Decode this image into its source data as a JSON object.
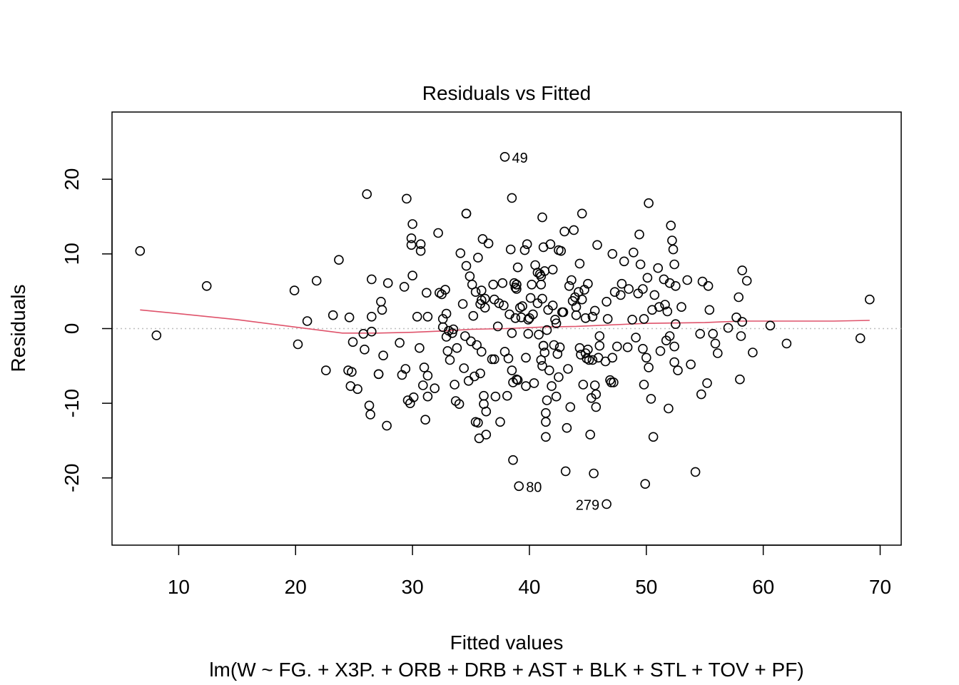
{
  "chart_data": {
    "type": "scatter",
    "title": "Residuals vs Fitted",
    "xlabel": "Fitted values",
    "subtitle": "lm(W ~ FG. + X3P. + ORB + DRB + AST + BLK + STL + TOV + PF)",
    "ylabel": "Residuals",
    "xlim": [
      4.3,
      71.8
    ],
    "ylim": [
      -29,
      29
    ],
    "x_ticks": [
      10,
      20,
      30,
      40,
      50,
      60,
      70
    ],
    "y_ticks": [
      -20,
      -10,
      0,
      10,
      20
    ],
    "reference_line_y": 0,
    "colors": {
      "points": "#000000",
      "smoother": "#DF536B",
      "reference": "#BEBEBE"
    },
    "labeled_points": [
      {
        "label": "49",
        "x": 37.9,
        "y": 23.0
      },
      {
        "label": "80",
        "x": 39.1,
        "y": -21.1
      },
      {
        "label": "279",
        "x": 46.6,
        "y": -23.5
      }
    ],
    "points": [
      [
        6.7,
        10.4
      ],
      [
        8.1,
        -0.9
      ],
      [
        12.4,
        5.7
      ],
      [
        19.9,
        5.1
      ],
      [
        20.2,
        -2.1
      ],
      [
        21.0,
        1.0
      ],
      [
        21.8,
        6.4
      ],
      [
        22.6,
        -5.6
      ],
      [
        23.2,
        1.8
      ],
      [
        23.7,
        9.2
      ],
      [
        24.5,
        -5.6
      ],
      [
        24.6,
        1.5
      ],
      [
        24.7,
        -7.7
      ],
      [
        24.8,
        -5.8
      ],
      [
        24.9,
        -1.8
      ],
      [
        25.3,
        -8.1
      ],
      [
        25.8,
        -0.7
      ],
      [
        25.9,
        -2.8
      ],
      [
        26.1,
        18.0
      ],
      [
        26.3,
        -10.3
      ],
      [
        26.4,
        -11.5
      ],
      [
        26.5,
        1.6
      ],
      [
        26.5,
        6.6
      ],
      [
        26.5,
        -0.4
      ],
      [
        27.1,
        -6.1
      ],
      [
        27.1,
        -6.1
      ],
      [
        27.3,
        3.6
      ],
      [
        27.4,
        2.5
      ],
      [
        27.5,
        -3.6
      ],
      [
        27.8,
        -13.0
      ],
      [
        27.9,
        6.1
      ],
      [
        28.9,
        -1.9
      ],
      [
        29.1,
        -6.2
      ],
      [
        29.3,
        5.6
      ],
      [
        29.4,
        -5.4
      ],
      [
        29.5,
        17.4
      ],
      [
        29.6,
        -9.6
      ],
      [
        29.8,
        -10.0
      ],
      [
        29.9,
        12.1
      ],
      [
        29.9,
        11.2
      ],
      [
        30.0,
        14.0
      ],
      [
        30.0,
        7.1
      ],
      [
        30.1,
        -9.2
      ],
      [
        30.4,
        1.6
      ],
      [
        30.6,
        -2.6
      ],
      [
        30.7,
        11.3
      ],
      [
        30.7,
        10.4
      ],
      [
        30.9,
        -7.6
      ],
      [
        31.0,
        -5.2
      ],
      [
        31.1,
        -12.2
      ],
      [
        31.2,
        4.8
      ],
      [
        31.3,
        -6.3
      ],
      [
        31.3,
        1.6
      ],
      [
        31.3,
        -9.1
      ],
      [
        31.9,
        -8.0
      ],
      [
        32.2,
        12.8
      ],
      [
        32.3,
        4.8
      ],
      [
        32.5,
        4.6
      ],
      [
        32.6,
        0.2
      ],
      [
        32.6,
        1.3
      ],
      [
        32.8,
        5.2
      ],
      [
        32.9,
        -1.1
      ],
      [
        32.9,
        2.0
      ],
      [
        33.0,
        -3.0
      ],
      [
        33.1,
        -0.3
      ],
      [
        33.2,
        -4.2
      ],
      [
        33.4,
        -0.6
      ],
      [
        33.5,
        -0.1
      ],
      [
        33.6,
        -7.5
      ],
      [
        33.7,
        -9.7
      ],
      [
        33.8,
        -2.6
      ],
      [
        34.0,
        -10.1
      ],
      [
        34.1,
        10.1
      ],
      [
        34.3,
        3.3
      ],
      [
        34.4,
        -5.3
      ],
      [
        34.5,
        -1.0
      ],
      [
        34.6,
        15.4
      ],
      [
        34.6,
        15.4
      ],
      [
        34.6,
        8.4
      ],
      [
        34.8,
        -7.0
      ],
      [
        34.9,
        7.0
      ],
      [
        35.0,
        -1.7
      ],
      [
        35.1,
        5.9
      ],
      [
        35.2,
        1.7
      ],
      [
        35.3,
        -6.4
      ],
      [
        35.4,
        4.9
      ],
      [
        35.4,
        -12.5
      ],
      [
        35.5,
        -2.2
      ],
      [
        35.6,
        9.5
      ],
      [
        35.6,
        -12.6
      ],
      [
        35.7,
        -14.7
      ],
      [
        35.8,
        3.3
      ],
      [
        35.8,
        -6.0
      ],
      [
        35.9,
        5.1
      ],
      [
        35.9,
        3.8
      ],
      [
        35.9,
        -3.1
      ],
      [
        36.0,
        12.0
      ],
      [
        36.1,
        -9.0
      ],
      [
        36.1,
        -10.1
      ],
      [
        36.2,
        4.0
      ],
      [
        36.2,
        2.8
      ],
      [
        36.3,
        -11.1
      ],
      [
        36.3,
        -14.2
      ],
      [
        36.5,
        11.4
      ],
      [
        36.8,
        -4.1
      ],
      [
        36.9,
        5.9
      ],
      [
        37.0,
        -4.1
      ],
      [
        37.0,
        3.9
      ],
      [
        37.1,
        -9.1
      ],
      [
        37.3,
        0.3
      ],
      [
        37.4,
        3.4
      ],
      [
        37.5,
        -12.5
      ],
      [
        37.7,
        6.1
      ],
      [
        37.8,
        3.1
      ],
      [
        37.9,
        23.0
      ],
      [
        37.9,
        -3.1
      ],
      [
        38.1,
        -9.0
      ],
      [
        38.2,
        -4.0
      ],
      [
        38.3,
        1.9
      ],
      [
        38.4,
        10.6
      ],
      [
        38.5,
        17.5
      ],
      [
        38.5,
        -5.6
      ],
      [
        38.5,
        -0.6
      ],
      [
        38.6,
        -7.2
      ],
      [
        38.6,
        -17.6
      ],
      [
        38.7,
        6.1
      ],
      [
        38.8,
        1.4
      ],
      [
        38.8,
        5.5
      ],
      [
        38.9,
        5.9
      ],
      [
        38.9,
        5.9
      ],
      [
        38.9,
        5.3
      ],
      [
        38.9,
        -6.8
      ],
      [
        39.0,
        -6.9
      ],
      [
        39.0,
        8.2
      ],
      [
        39.1,
        -21.1
      ],
      [
        39.2,
        2.8
      ],
      [
        39.3,
        1.5
      ],
      [
        39.4,
        3.0
      ],
      [
        39.6,
        10.5
      ],
      [
        39.7,
        -3.9
      ],
      [
        39.7,
        -7.7
      ],
      [
        39.8,
        11.3
      ],
      [
        39.9,
        1.2
      ],
      [
        39.9,
        -0.7
      ],
      [
        40.0,
        1.4
      ],
      [
        40.1,
        4.1
      ],
      [
        40.2,
        5.9
      ],
      [
        40.3,
        1.9
      ],
      [
        40.4,
        -7.3
      ],
      [
        40.5,
        8.5
      ],
      [
        40.7,
        7.5
      ],
      [
        40.7,
        3.4
      ],
      [
        40.8,
        -0.8
      ],
      [
        40.9,
        7.3
      ],
      [
        41.0,
        7.0
      ],
      [
        41.0,
        -4.2
      ],
      [
        41.0,
        5.9
      ],
      [
        41.1,
        4.0
      ],
      [
        41.1,
        -5.0
      ],
      [
        41.1,
        14.9
      ],
      [
        41.2,
        -2.3
      ],
      [
        41.2,
        -2.3
      ],
      [
        41.2,
        10.9
      ],
      [
        41.3,
        7.7
      ],
      [
        41.3,
        -3.2
      ],
      [
        41.4,
        -11.3
      ],
      [
        41.4,
        -12.5
      ],
      [
        41.4,
        -14.5
      ],
      [
        41.5,
        -0.2
      ],
      [
        41.5,
        -9.6
      ],
      [
        41.6,
        2.5
      ],
      [
        41.7,
        -5.6
      ],
      [
        41.8,
        11.3
      ],
      [
        41.9,
        -7.7
      ],
      [
        42.0,
        3.1
      ],
      [
        42.0,
        7.9
      ],
      [
        42.1,
        -2.2
      ],
      [
        42.2,
        1.2
      ],
      [
        42.3,
        -9.1
      ],
      [
        42.3,
        0.7
      ],
      [
        42.4,
        -3.4
      ],
      [
        42.5,
        -6.5
      ],
      [
        42.5,
        10.5
      ],
      [
        42.6,
        -2.5
      ],
      [
        42.7,
        10.4
      ],
      [
        42.8,
        2.2
      ],
      [
        42.9,
        2.2
      ],
      [
        43.0,
        13.0
      ],
      [
        43.1,
        -19.1
      ],
      [
        43.2,
        -13.3
      ],
      [
        43.3,
        -5.4
      ],
      [
        43.4,
        5.7
      ],
      [
        43.5,
        -10.5
      ],
      [
        43.6,
        6.5
      ],
      [
        43.7,
        3.7
      ],
      [
        43.8,
        13.2
      ],
      [
        43.9,
        4.2
      ],
      [
        44.0,
        1.8
      ],
      [
        44.0,
        2.9
      ],
      [
        44.2,
        4.9
      ],
      [
        44.3,
        8.7
      ],
      [
        44.3,
        -2.6
      ],
      [
        44.4,
        -3.5
      ],
      [
        44.5,
        15.4
      ],
      [
        44.5,
        3.9
      ],
      [
        44.6,
        -7.5
      ],
      [
        44.7,
        5.2
      ],
      [
        44.8,
        1.4
      ],
      [
        44.8,
        -3.3
      ],
      [
        44.9,
        -4.0
      ],
      [
        45.0,
        6.0
      ],
      [
        45.0,
        -2.8
      ],
      [
        45.1,
        -4.2
      ],
      [
        45.2,
        -14.2
      ],
      [
        45.3,
        -9.3
      ],
      [
        45.4,
        1.6
      ],
      [
        45.4,
        -4.2
      ],
      [
        45.5,
        -19.4
      ],
      [
        45.6,
        -7.6
      ],
      [
        45.6,
        2.4
      ],
      [
        45.7,
        -8.8
      ],
      [
        45.7,
        -10.5
      ],
      [
        45.8,
        11.2
      ],
      [
        45.9,
        -3.9
      ],
      [
        46.0,
        -1.0
      ],
      [
        46.0,
        -2.3
      ],
      [
        46.5,
        -4.4
      ],
      [
        46.6,
        -23.5
      ],
      [
        46.6,
        3.6
      ],
      [
        46.7,
        1.3
      ],
      [
        46.9,
        -6.9
      ],
      [
        47.0,
        -7.2
      ],
      [
        47.1,
        10.0
      ],
      [
        47.1,
        -3.9
      ],
      [
        47.2,
        -7.2
      ],
      [
        47.3,
        4.9
      ],
      [
        47.5,
        -2.4
      ],
      [
        47.8,
        4.5
      ],
      [
        47.9,
        6.0
      ],
      [
        48.1,
        9.0
      ],
      [
        48.4,
        -2.5
      ],
      [
        48.5,
        5.3
      ],
      [
        48.8,
        1.2
      ],
      [
        48.9,
        10.2
      ],
      [
        49.1,
        -1.2
      ],
      [
        49.3,
        4.7
      ],
      [
        49.4,
        12.6
      ],
      [
        49.5,
        8.6
      ],
      [
        49.7,
        -2.7
      ],
      [
        49.7,
        5.3
      ],
      [
        49.8,
        -7.5
      ],
      [
        49.8,
        1.3
      ],
      [
        49.9,
        -20.8
      ],
      [
        50.0,
        -3.9
      ],
      [
        50.1,
        6.8
      ],
      [
        50.2,
        -5.2
      ],
      [
        50.2,
        16.8
      ],
      [
        50.4,
        -9.4
      ],
      [
        50.5,
        2.5
      ],
      [
        50.6,
        -14.5
      ],
      [
        50.7,
        4.5
      ],
      [
        51.0,
        8.1
      ],
      [
        51.1,
        2.9
      ],
      [
        51.2,
        -3.0
      ],
      [
        51.5,
        6.6
      ],
      [
        51.6,
        3.2
      ],
      [
        51.7,
        -1.6
      ],
      [
        51.8,
        2.3
      ],
      [
        51.9,
        -10.7
      ],
      [
        52.0,
        6.1
      ],
      [
        52.0,
        -1.0
      ],
      [
        52.1,
        13.8
      ],
      [
        52.2,
        11.8
      ],
      [
        52.3,
        10.6
      ],
      [
        52.4,
        -4.5
      ],
      [
        52.4,
        8.6
      ],
      [
        52.4,
        -2.4
      ],
      [
        52.5,
        5.7
      ],
      [
        52.5,
        0.6
      ],
      [
        52.7,
        -5.6
      ],
      [
        53.0,
        2.9
      ],
      [
        53.5,
        6.5
      ],
      [
        53.8,
        -4.8
      ],
      [
        54.2,
        -19.2
      ],
      [
        54.6,
        -0.7
      ],
      [
        54.7,
        -8.8
      ],
      [
        54.8,
        6.3
      ],
      [
        55.2,
        -7.3
      ],
      [
        55.3,
        5.7
      ],
      [
        55.4,
        2.5
      ],
      [
        55.7,
        -0.7
      ],
      [
        55.9,
        -2.0
      ],
      [
        56.1,
        -3.3
      ],
      [
        57.0,
        0.1
      ],
      [
        57.7,
        1.5
      ],
      [
        57.9,
        4.2
      ],
      [
        58.0,
        -6.8
      ],
      [
        58.1,
        -1.0
      ],
      [
        58.2,
        0.9
      ],
      [
        58.2,
        7.8
      ],
      [
        58.6,
        6.4
      ],
      [
        59.1,
        -3.2
      ],
      [
        60.6,
        0.4
      ],
      [
        62.0,
        -2.0
      ],
      [
        68.3,
        -1.3
      ],
      [
        69.1,
        3.9
      ]
    ],
    "smoother": [
      [
        6.7,
        2.5
      ],
      [
        10,
        2.0
      ],
      [
        15,
        1.2
      ],
      [
        20,
        0.2
      ],
      [
        24,
        -0.6
      ],
      [
        27,
        -0.6
      ],
      [
        30,
        -0.5
      ],
      [
        33,
        -0.3
      ],
      [
        35,
        -0.1
      ],
      [
        38,
        0.0
      ],
      [
        41,
        0.2
      ],
      [
        44,
        0.3
      ],
      [
        47,
        0.5
      ],
      [
        50,
        0.7
      ],
      [
        55,
        0.8
      ],
      [
        58,
        1.0
      ],
      [
        62,
        1.0
      ],
      [
        66,
        1.0
      ],
      [
        69.1,
        1.1
      ]
    ]
  }
}
